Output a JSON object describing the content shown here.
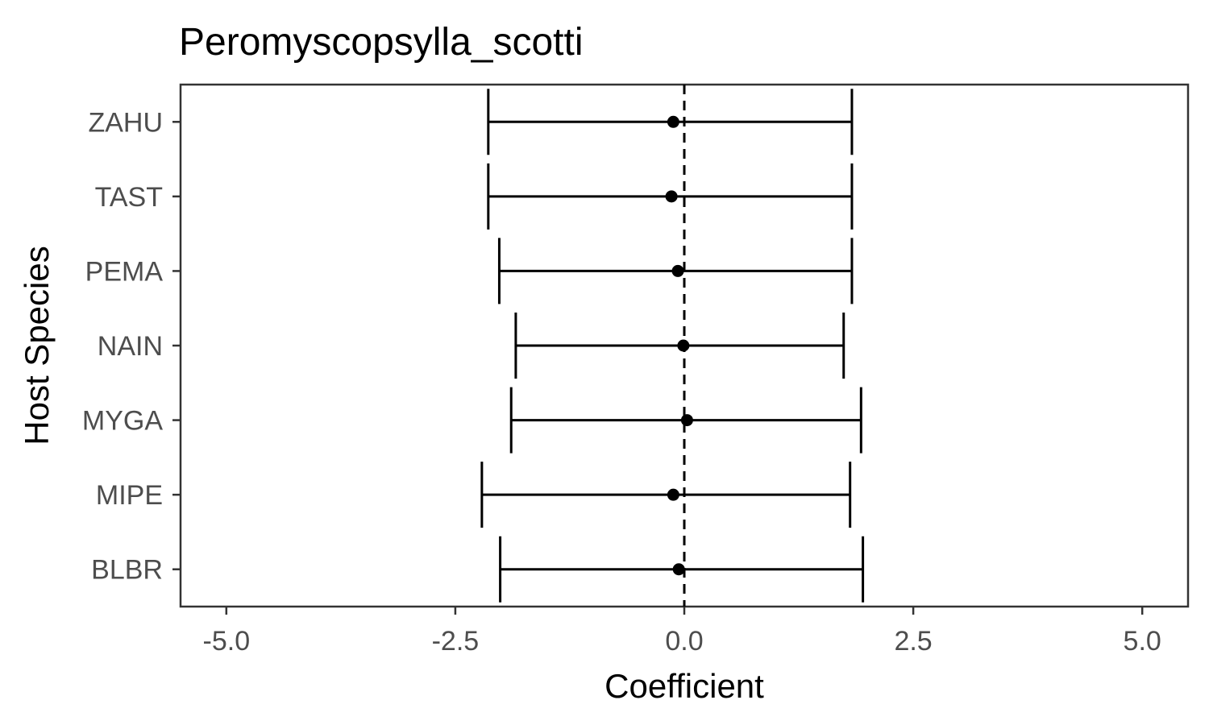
{
  "chart_data": {
    "type": "scatter",
    "title": "Peromyscopsylla_scotti",
    "xlabel": "Coefficient",
    "ylabel": "Host Species",
    "xlim": [
      -5.5,
      5.5
    ],
    "x_ticks": [
      -5.0,
      -2.5,
      0.0,
      2.5,
      5.0
    ],
    "x_tick_labels": [
      "-5.0",
      "-2.5",
      "0.0",
      "2.5",
      "5.0"
    ],
    "categories": [
      "BLBR",
      "MIPE",
      "MYGA",
      "NAIN",
      "PEMA",
      "TAST",
      "ZAHU"
    ],
    "points": [
      {
        "category": "BLBR",
        "estimate": -0.06,
        "lower": -2.01,
        "upper": 1.95
      },
      {
        "category": "MIPE",
        "estimate": -0.12,
        "lower": -2.21,
        "upper": 1.81
      },
      {
        "category": "MYGA",
        "estimate": 0.03,
        "lower": -1.89,
        "upper": 1.93
      },
      {
        "category": "NAIN",
        "estimate": -0.01,
        "lower": -1.84,
        "upper": 1.74
      },
      {
        "category": "PEMA",
        "estimate": -0.07,
        "lower": -2.02,
        "upper": 1.83
      },
      {
        "category": "TAST",
        "estimate": -0.14,
        "lower": -2.14,
        "upper": 1.83
      },
      {
        "category": "ZAHU",
        "estimate": -0.12,
        "lower": -2.14,
        "upper": 1.83
      }
    ],
    "reference_line": {
      "x": 0,
      "style": "dashed"
    },
    "grid": false,
    "legend": "none"
  }
}
